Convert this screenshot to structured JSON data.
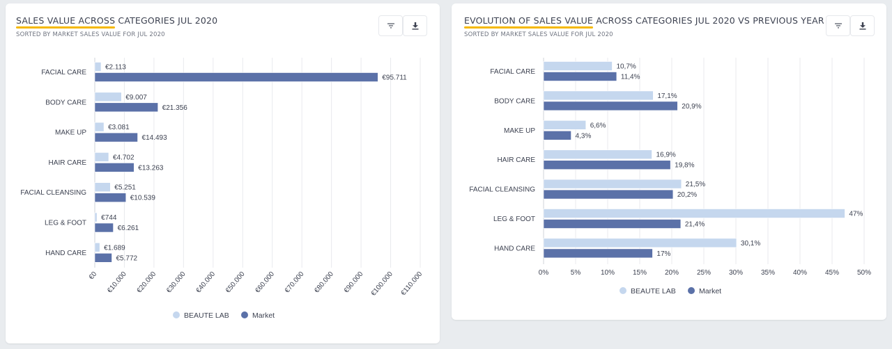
{
  "colors": {
    "beaute_lab": "#c5d7ee",
    "market": "#5b71a8",
    "title_accent": "#f5b800",
    "gridline": "#e8eaee"
  },
  "icons": {
    "filter": "filter-icon",
    "download": "download-icon"
  },
  "left_panel": {
    "title_highlight": "SALES VALUE ACROSS",
    "title_rest": " CATEGORIES JUL 2020",
    "subtitle": "SORTED BY MARKET SALES VALUE FOR JUL 2020"
  },
  "right_panel": {
    "title_highlight": "EVOLUTION OF SALES VALUE",
    "title_rest": " ACROSS CATEGORIES JUL 2020 VS PREVIOUS YEAR",
    "subtitle": "SORTED BY MARKET SALES VALUE FOR JUL 2020"
  },
  "chart_data": [
    {
      "type": "bar",
      "orientation": "horizontal",
      "title": "SALES VALUE ACROSS CATEGORIES JUL 2020",
      "subtitle": "SORTED BY MARKET SALES VALUE FOR JUL 2020",
      "categories": [
        "FACIAL CARE",
        "BODY CARE",
        "MAKE UP",
        "HAIR CARE",
        "FACIAL CLEANSING",
        "LEG & FOOT",
        "HAND CARE"
      ],
      "series": [
        {
          "name": "BEAUTE LAB",
          "values": [
            2113,
            9007,
            3081,
            4702,
            5251,
            744,
            1689
          ],
          "labels": [
            "€2.113",
            "€9.007",
            "€3.081",
            "€4.702",
            "€5.251",
            "€744",
            "€1.689"
          ]
        },
        {
          "name": "Market",
          "values": [
            95711,
            21356,
            14493,
            13263,
            10539,
            6261,
            5772
          ],
          "labels": [
            "€95.711",
            "€21.356",
            "€14.493",
            "€13.263",
            "€10.539",
            "€6.261",
            "€5.772"
          ]
        }
      ],
      "xlim": [
        0,
        110000
      ],
      "xticks": [
        0,
        10000,
        20000,
        30000,
        40000,
        50000,
        60000,
        70000,
        80000,
        90000,
        100000,
        110000
      ],
      "xtick_labels": [
        "€0",
        "€10.000",
        "€20.000",
        "€30.000",
        "€40.000",
        "€50.000",
        "€60.000",
        "€70.000",
        "€80.000",
        "€90.000",
        "€100.000",
        "€110.000"
      ],
      "xlabel": "",
      "ylabel": "",
      "grid": true,
      "legend": [
        "BEAUTE LAB",
        "Market"
      ],
      "legend_position": "bottom"
    },
    {
      "type": "bar",
      "orientation": "horizontal",
      "title": "EVOLUTION OF SALES VALUE ACROSS CATEGORIES JUL 2020 VS PREVIOUS YEAR",
      "subtitle": "SORTED BY MARKET SALES VALUE FOR JUL 2020",
      "categories": [
        "FACIAL CARE",
        "BODY CARE",
        "MAKE UP",
        "HAIR CARE",
        "FACIAL CLEANSING",
        "LEG & FOOT",
        "HAND CARE"
      ],
      "series": [
        {
          "name": "BEAUTE LAB",
          "values": [
            10.7,
            17.1,
            6.6,
            16.9,
            21.5,
            47,
            30.1
          ],
          "labels": [
            "10,7%",
            "17,1%",
            "6,6%",
            "16,9%",
            "21,5%",
            "47%",
            "30,1%"
          ]
        },
        {
          "name": "Market",
          "values": [
            11.4,
            20.9,
            4.3,
            19.8,
            20.2,
            21.4,
            17
          ],
          "labels": [
            "11,4%",
            "20,9%",
            "4,3%",
            "19,8%",
            "20,2%",
            "21,4%",
            "17%"
          ]
        }
      ],
      "xlim": [
        0,
        50
      ],
      "xticks": [
        0,
        5,
        10,
        15,
        20,
        25,
        30,
        35,
        40,
        45,
        50
      ],
      "xtick_labels": [
        "0%",
        "5%",
        "10%",
        "15%",
        "20%",
        "25%",
        "30%",
        "35%",
        "40%",
        "45%",
        "50%"
      ],
      "xlabel": "",
      "ylabel": "",
      "grid": true,
      "legend": [
        "BEAUTE LAB",
        "Market"
      ],
      "legend_position": "bottom"
    }
  ]
}
